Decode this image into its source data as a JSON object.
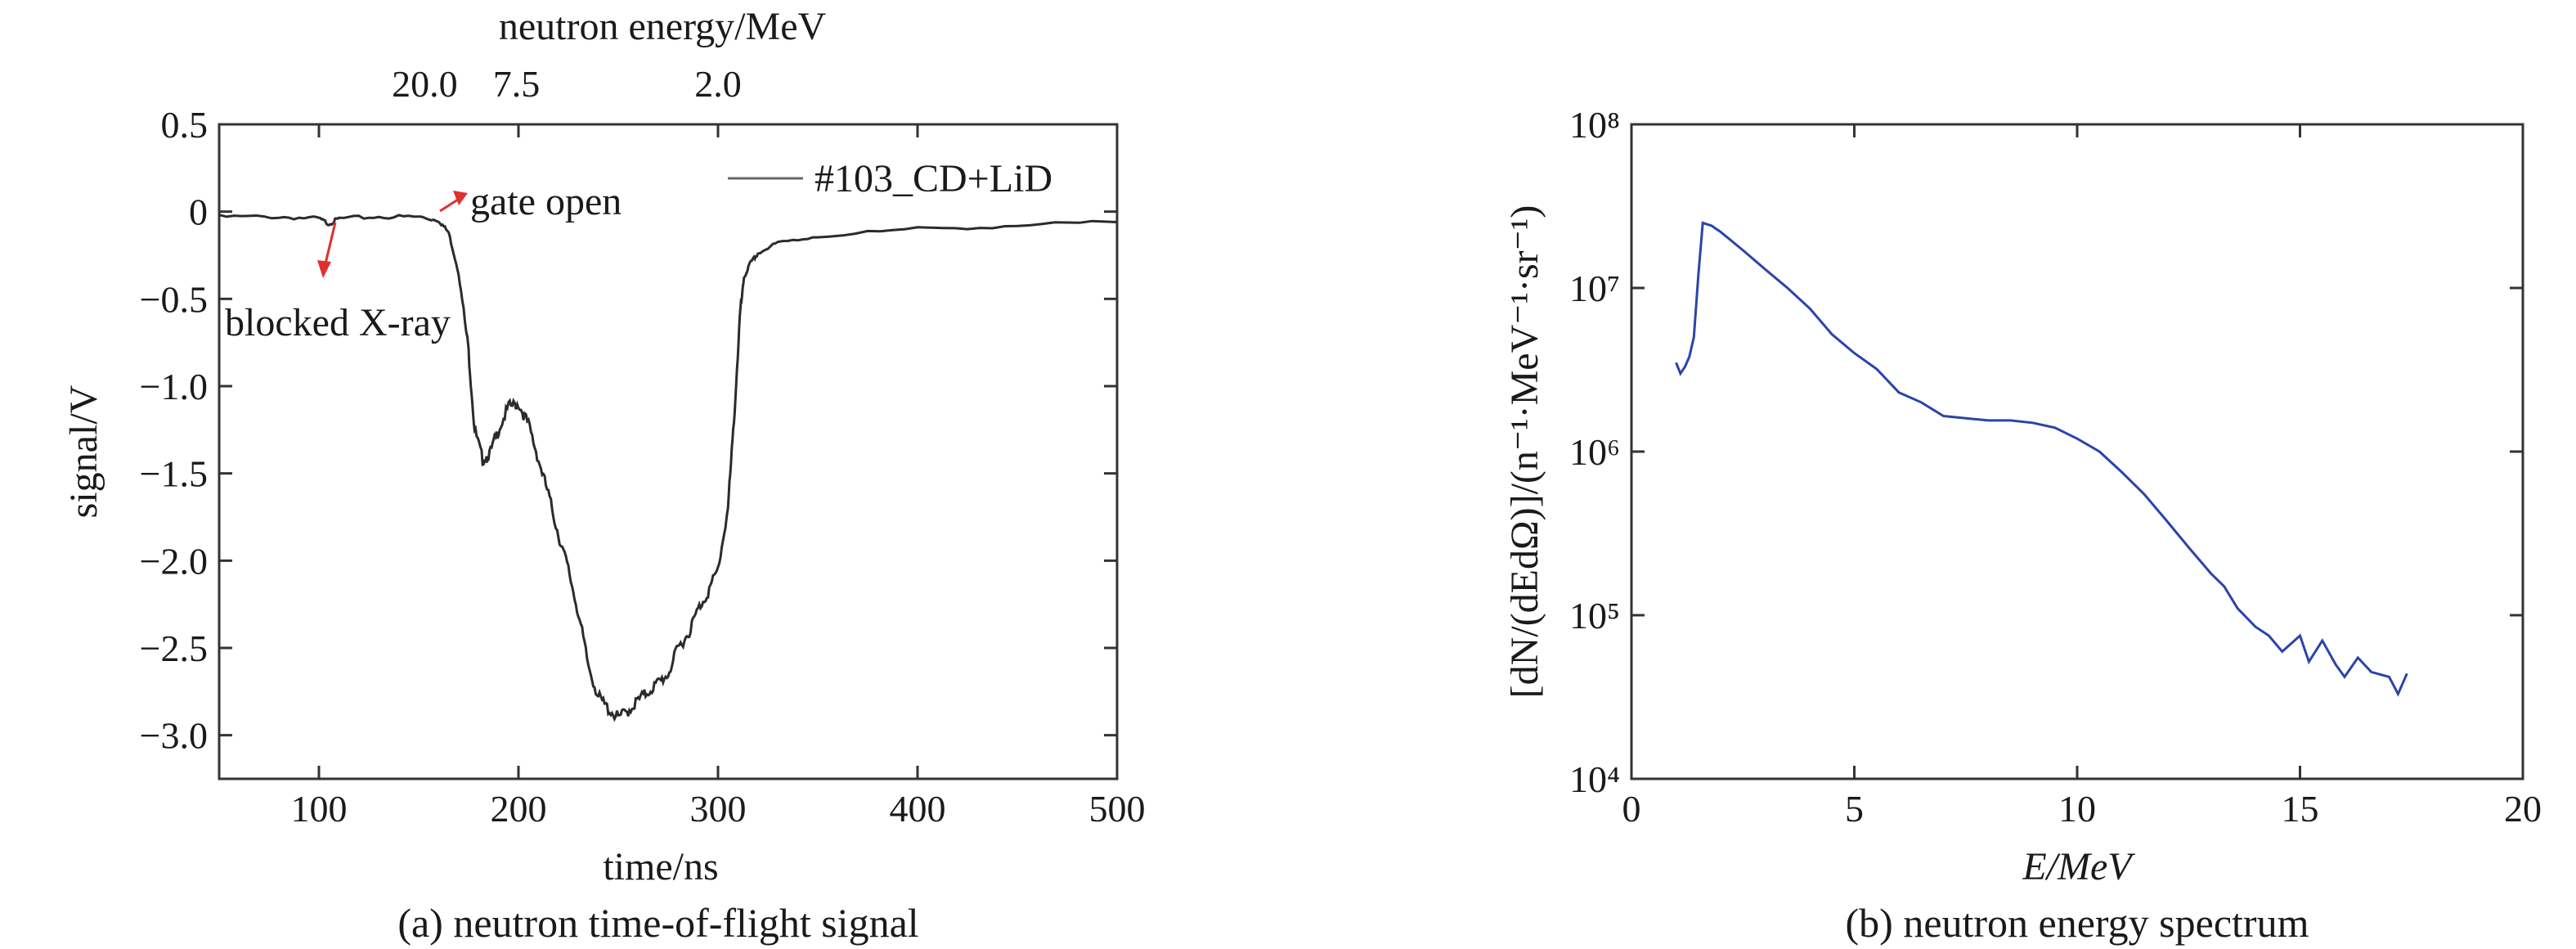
{
  "figure": {
    "captions": [
      "(a) neutron time-of-flight signal",
      "(b) neutron energy spectrum"
    ]
  },
  "chart_data": [
    {
      "type": "line",
      "xlabel": "time/ns",
      "ylabel": "signal/V",
      "top_axis_label": "neutron energy/MeV",
      "top_ticks": [
        {
          "label": "20.0",
          "at_time_ns": 153
        },
        {
          "label": "7.5",
          "at_time_ns": 199
        },
        {
          "label": "2.0",
          "at_time_ns": 300
        }
      ],
      "xlim": [
        50,
        500
      ],
      "ylim": [
        -3.25,
        0.5
      ],
      "xticks": [
        100,
        200,
        300,
        400,
        500
      ],
      "xtick_labels": [
        "100",
        "200",
        "300",
        "400",
        "500"
      ],
      "yticks": [
        0.5,
        0,
        -0.5,
        -1.0,
        -1.5,
        -2.0,
        -2.5,
        -3.0
      ],
      "ytick_labels": [
        "0.5",
        "0",
        "−0.5",
        "−1.0",
        "−1.5",
        "−2.0",
        "−2.5",
        "−3.0"
      ],
      "grid": false,
      "legend_position": "top-right",
      "series": [
        {
          "name": "#103_CD+LiD",
          "color": "#2b2b2b",
          "x": [
            50,
            80,
            100,
            105,
            110,
            130,
            150,
            160,
            165,
            170,
            175,
            178,
            182,
            186,
            190,
            195,
            200,
            205,
            210,
            215,
            220,
            225,
            230,
            235,
            240,
            245,
            250,
            255,
            260,
            265,
            270,
            275,
            280,
            285,
            290,
            295,
            300,
            305,
            308,
            311,
            313,
            316,
            320,
            330,
            350,
            400,
            450,
            500
          ],
          "y": [
            -0.03,
            -0.03,
            -0.04,
            -0.07,
            -0.04,
            -0.03,
            -0.03,
            -0.05,
            -0.12,
            -0.35,
            -0.8,
            -1.25,
            -1.42,
            -1.38,
            -1.25,
            -1.12,
            -1.1,
            -1.22,
            -1.42,
            -1.62,
            -1.85,
            -2.05,
            -2.3,
            -2.6,
            -2.78,
            -2.85,
            -2.9,
            -2.86,
            -2.8,
            -2.75,
            -2.7,
            -2.65,
            -2.5,
            -2.42,
            -2.28,
            -2.18,
            -2.05,
            -1.7,
            -1.2,
            -0.6,
            -0.38,
            -0.3,
            -0.24,
            -0.18,
            -0.14,
            -0.1,
            -0.08,
            -0.06
          ]
        }
      ],
      "annotations": [
        {
          "text": "gate open",
          "arrow_color": "#e03030"
        },
        {
          "text": "blocked X-ray",
          "arrow_color": "#e03030"
        }
      ]
    },
    {
      "type": "line",
      "xlabel": "E/MeV",
      "ylabel": "[dN/(dEdΩ)]/(n⁻¹·MeV⁻¹·sr⁻¹)",
      "xlim": [
        0,
        20
      ],
      "ylim": [
        10000,
        100000000
      ],
      "y_scale": "log",
      "xticks": [
        0,
        5,
        10,
        15,
        20
      ],
      "xtick_labels": [
        "0",
        "5",
        "10",
        "15",
        "20"
      ],
      "yticks": [
        10000,
        100000,
        1000000,
        10000000,
        100000000
      ],
      "ytick_labels": [
        "10⁴",
        "10⁵",
        "10⁶",
        "10⁷",
        "10⁸"
      ],
      "grid": false,
      "series": [
        {
          "color": "#2a44a8",
          "x": [
            1.0,
            1.1,
            1.2,
            1.3,
            1.4,
            1.5,
            1.6,
            1.8,
            2.0,
            2.5,
            3.0,
            3.5,
            4.0,
            4.5,
            5.0,
            5.5,
            6.0,
            6.5,
            7.0,
            7.5,
            8.0,
            8.5,
            9.0,
            9.5,
            10.0,
            10.5,
            11.0,
            11.5,
            12.0,
            12.5,
            13.0,
            13.3,
            13.6,
            14.0,
            14.3,
            14.6,
            15.0,
            15.2,
            15.5,
            15.8,
            16.0,
            16.3,
            16.6,
            17.0,
            17.2,
            17.4
          ],
          "y": [
            3500000,
            3000000,
            3300000,
            3800000,
            5000000,
            12000000,
            25000000,
            24000000,
            22000000,
            17000000,
            13000000,
            10000000,
            7500000,
            5200000,
            4000000,
            3200000,
            2300000,
            2000000,
            1650000,
            1600000,
            1550000,
            1550000,
            1500000,
            1400000,
            1200000,
            1000000,
            750000,
            550000,
            380000,
            260000,
            180000,
            150000,
            110000,
            85000,
            75000,
            60000,
            75000,
            52000,
            70000,
            50000,
            42000,
            55000,
            45000,
            42000,
            33000,
            44000
          ]
        }
      ]
    }
  ]
}
